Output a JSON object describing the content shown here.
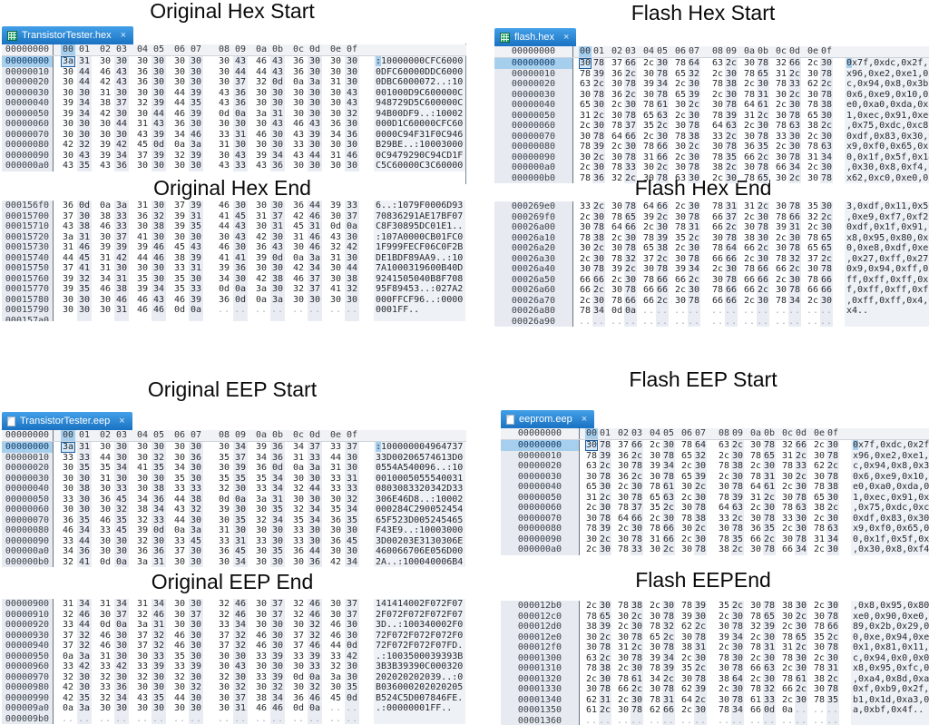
{
  "ui": {
    "close_glyph": "×",
    "columns": "00 01 02 03 04 05 06 07 08 09 0a 0b 0c 0d 0e 0f",
    "cursor_col_index": 0,
    "colors": {
      "tab_blue": "#1e7ac6",
      "selection_blue": "#a6cfee",
      "cursor_border": "#1d5c9c",
      "column_shade": "#e9edf3",
      "gutter_bg": "#e7ebf1",
      "ascii_bg": "#eef1f6",
      "hex_icon_green": "#1f9e63"
    }
  },
  "titles": [
    "Original Hex Start",
    "Flash Hex Start",
    "Original Hex End",
    "Flash Hex End",
    "Original EEP Start",
    "Flash EEP Start",
    "Original EEP End",
    "Flash EEPEnd"
  ],
  "panels": [
    {
      "name": "original-hex-start",
      "kind": "start",
      "tab": {
        "file": "TransistorTester.hex",
        "icon": "spreadsheet-file-icon"
      },
      "header_offset": "00000000",
      "rows": [
        {
          "offset": "00000000",
          "sel": true,
          "bytes": "3a 31 30 30 30 30 30 30 30 43 46 43 36 30 30 30",
          "ascii": ":10000000CFC6000"
        },
        {
          "offset": "00000010",
          "bytes": "30 44 46 43 36 30 30 30 30 44 44 43 36 30 30 30",
          "ascii": "0DFC60000DDC6000"
        },
        {
          "offset": "00000020",
          "bytes": "30 44 42 43 36 30 30 30 30 37 32 0d 0a 3a 31 30",
          "ascii": "0DBC6000072..:10"
        },
        {
          "offset": "00000030",
          "bytes": "30 30 31 30 30 30 44 39 43 36 30 30 30 30 30 43",
          "ascii": "001000D9C600000C"
        },
        {
          "offset": "00000040",
          "bytes": "39 34 38 37 32 39 44 35 43 36 30 30 30 30 30 43",
          "ascii": "948729D5C600000C"
        },
        {
          "offset": "00000050",
          "bytes": "39 34 42 30 30 44 46 39 0d 0a 3a 31 30 30 30 32",
          "ascii": "94B00DF9..:10002"
        },
        {
          "offset": "00000060",
          "bytes": "30 30 30 44 31 43 36 30 30 30 30 43 46 43 36 30",
          "ascii": "000D1C60000CFC60"
        },
        {
          "offset": "00000070",
          "bytes": "30 30 30 30 43 39 34 46 33 31 46 30 43 39 34 36",
          "ascii": "0000C94F31F0C946"
        },
        {
          "offset": "00000080",
          "bytes": "42 32 39 42 45 0d 0a 3a 31 30 30 30 33 30 30 30",
          "ascii": "B29BE..:10003000"
        },
        {
          "offset": "00000090",
          "bytes": "30 43 39 34 37 39 32 39 30 43 39 34 43 44 31 46",
          "ascii": "0C9479290C94CD1F"
        },
        {
          "offset": "000000a0",
          "bytes": "43 35 43 36 30 30 30 30 43 33 43 36 30 30 30 30",
          "ascii": "C5C60000C3C60000"
        }
      ]
    },
    {
      "name": "flash-hex-start",
      "kind": "start",
      "tab": {
        "file": "flash.hex",
        "icon": "spreadsheet-file-icon"
      },
      "header_offset": "00000000",
      "rows": [
        {
          "offset": "00000000",
          "sel": true,
          "bytes": "30 78 37 66 2c 30 78 64 63 2c 30 78 32 66 2c 30",
          "ascii": "0x7f,0xdc,0x2f,0"
        },
        {
          "offset": "00000010",
          "bytes": "78 39 36 2c 30 78 65 32 2c 30 78 65 31 2c 30 78",
          "ascii": "x96,0xe2,0xe1,0x"
        },
        {
          "offset": "00000020",
          "bytes": "63 2c 30 78 39 34 2c 30 78 38 2c 30 78 33 62 2c",
          "ascii": "c,0x94,0x8,0x3b,"
        },
        {
          "offset": "00000030",
          "bytes": "30 78 36 2c 30 78 65 39 2c 30 78 31 30 2c 30 78",
          "ascii": "0x6,0xe9,0x10,0x"
        },
        {
          "offset": "00000040",
          "bytes": "65 30 2c 30 78 61 30 2c 30 78 64 61 2c 30 78 38",
          "ascii": "e0,0xa0,0xda,0x8"
        },
        {
          "offset": "00000050",
          "bytes": "31 2c 30 78 65 63 2c 30 78 39 31 2c 30 78 65 30",
          "ascii": "1,0xec,0x91,0xe0"
        },
        {
          "offset": "00000060",
          "bytes": "2c 30 78 37 35 2c 30 78 64 63 2c 30 78 63 38 2c",
          "ascii": ",0x75,0xdc,0xc8,"
        },
        {
          "offset": "00000070",
          "bytes": "30 78 64 66 2c 30 78 38 33 2c 30 78 33 30 2c 30",
          "ascii": "0xdf,0x83,0x30,0"
        },
        {
          "offset": "00000080",
          "bytes": "78 39 2c 30 78 66 30 2c 30 78 36 35 2c 30 78 63",
          "ascii": "x9,0xf0,0x65,0xc"
        },
        {
          "offset": "00000090",
          "bytes": "30 2c 30 78 31 66 2c 30 78 35 66 2c 30 78 31 34",
          "ascii": "0,0x1f,0x5f,0x14"
        },
        {
          "offset": "000000a0",
          "bytes": "2c 30 78 33 30 2c 30 78 38 2c 30 78 66 34 2c 30",
          "ascii": ",0x30,0x8,0xf4,0"
        },
        {
          "offset": "000000b0",
          "bytes": "78 36 32 2c 30 78 63 30 2c 30 78 65 30 2c 30 78",
          "ascii": "x62,0xc0,0xe0,0x"
        }
      ]
    },
    {
      "name": "original-hex-end",
      "kind": "end",
      "rows": [
        {
          "offset": "000156f0",
          "bytes": "36 0d 0a 3a 31 30 37 39 46 30 30 30 36 44 39 33",
          "ascii": "6..:1079F0006D93"
        },
        {
          "offset": "00015700",
          "bytes": "37 30 38 33 36 32 39 31 41 45 31 37 42 46 30 37",
          "ascii": "70836291AE17BF07"
        },
        {
          "offset": "00015710",
          "bytes": "43 38 46 33 30 38 39 35 44 43 30 31 45 31 0d 0a",
          "ascii": "C8F30895DC01E1.."
        },
        {
          "offset": "00015720",
          "bytes": "3a 31 30 37 41 30 30 30 30 43 42 30 31 46 43 30",
          "ascii": ":107A0000CB01FC0"
        },
        {
          "offset": "00015730",
          "bytes": "31 46 39 39 39 46 45 43 46 30 36 43 30 46 32 42",
          "ascii": "1F999FECF06C0F2B"
        },
        {
          "offset": "00015740",
          "bytes": "44 45 31 42 44 46 38 39 41 41 39 0d 0a 3a 31 30",
          "ascii": "DE1BDF89AA9..:10"
        },
        {
          "offset": "00015750",
          "bytes": "37 41 31 30 30 30 33 31 39 36 30 30 42 34 30 44",
          "ascii": "7A1000319600B40D"
        },
        {
          "offset": "00015760",
          "bytes": "39 32 34 31 35 30 35 30 34 30 42 38 46 37 30 38",
          "ascii": "9241505040B8F708"
        },
        {
          "offset": "00015770",
          "bytes": "39 35 46 38 39 34 35 33 0d 0a 3a 30 32 37 41 32",
          "ascii": "95F89453..:027A2"
        },
        {
          "offset": "00015780",
          "bytes": "30 30 30 46 46 43 46 39 36 0d 0a 3a 30 30 30 30",
          "ascii": "000FFCF96..:0000"
        },
        {
          "offset": "00015790",
          "bytes": "30 30 30 31 46 46 0d 0a .. .. .. .. .. .. .. ..",
          "ascii": "0001FF.."
        },
        {
          "offset": "000157a0",
          "bytes": ".. .. .. .. .. .. .. .. .. .. .. .. .. .. .. ..",
          "ascii": ""
        }
      ]
    },
    {
      "name": "flash-hex-end",
      "kind": "end",
      "rows": [
        {
          "offset": "000269e0",
          "bytes": "33 2c 30 78 64 66 2c 30 78 31 31 2c 30 78 35 30",
          "ascii": "3,0xdf,0x11,0x50"
        },
        {
          "offset": "000269f0",
          "bytes": "2c 30 78 65 39 2c 30 78 66 37 2c 30 78 66 32 2c",
          "ascii": ",0xe9,0xf7,0xf2,"
        },
        {
          "offset": "00026a00",
          "bytes": "30 78 64 66 2c 30 78 31 66 2c 30 78 39 31 2c 30",
          "ascii": "0xdf,0x1f,0x91,0"
        },
        {
          "offset": "00026a10",
          "bytes": "78 38 2c 30 78 39 35 2c 30 78 38 30 2c 30 78 65",
          "ascii": "x8,0x95,0x80,0xe"
        },
        {
          "offset": "00026a20",
          "bytes": "30 2c 30 78 65 38 2c 30 78 64 66 2c 30 78 65 65",
          "ascii": "0,0xe8,0xdf,0xee"
        },
        {
          "offset": "00026a30",
          "bytes": "2c 30 78 32 37 2c 30 78 66 66 2c 30 78 32 37 2c",
          "ascii": ",0x27,0xff,0x27,"
        },
        {
          "offset": "00026a40",
          "bytes": "30 78 39 2c 30 78 39 34 2c 30 78 66 66 2c 30 78",
          "ascii": "0x9,0x94,0xff,0x"
        },
        {
          "offset": "00026a50",
          "bytes": "66 66 2c 30 78 66 66 2c 30 78 66 66 2c 30 78 66",
          "ascii": "ff,0xff,0xff,0xf"
        },
        {
          "offset": "00026a60",
          "bytes": "66 2c 30 78 66 66 2c 30 78 66 66 2c 30 78 66 66",
          "ascii": "f,0xff,0xff,0xff"
        },
        {
          "offset": "00026a70",
          "bytes": "2c 30 78 66 66 2c 30 78 66 66 2c 30 78 34 2c 30",
          "ascii": ",0xff,0xff,0x4,0"
        },
        {
          "offset": "00026a80",
          "bytes": "78 34 0d 0a .. .. .. .. .. .. .. .. .. .. .. ..",
          "ascii": "x4.."
        },
        {
          "offset": "00026a90",
          "bytes": ".. .. .. .. .. .. .. .. .. .. .. .. .. .. .. ..",
          "ascii": ""
        }
      ]
    },
    {
      "name": "original-eep-start",
      "kind": "start",
      "tab": {
        "file": "TransistorTester.eep",
        "icon": "document-file-icon"
      },
      "header_offset": "00000000",
      "rows": [
        {
          "offset": "00000000",
          "sel": true,
          "bytes": "3a 31 30 30 30 30 30 30 30 34 39 36 34 37 33 37",
          "ascii": ":100000004964737"
        },
        {
          "offset": "00000010",
          "bytes": "33 33 44 30 30 32 30 36 35 37 34 36 31 33 44 30",
          "ascii": "33D00206574613D0"
        },
        {
          "offset": "00000020",
          "bytes": "30 35 35 34 41 35 34 30 30 39 36 0d 0a 3a 31 30",
          "ascii": "0554A540096..:10"
        },
        {
          "offset": "00000030",
          "bytes": "30 30 31 30 30 30 35 30 35 35 35 34 30 30 33 31",
          "ascii": "0010005055540031"
        },
        {
          "offset": "00000040",
          "bytes": "30 38 30 33 30 38 33 33 32 30 33 34 32 44 33 33",
          "ascii": "0803083320342D33"
        },
        {
          "offset": "00000050",
          "bytes": "33 30 36 45 34 36 44 38 0d 0a 3a 31 30 30 30 32",
          "ascii": "306E46D8..:10002"
        },
        {
          "offset": "00000060",
          "bytes": "30 30 30 32 38 34 43 32 39 30 30 35 32 34 35 34",
          "ascii": "000284C290052454"
        },
        {
          "offset": "00000070",
          "bytes": "36 35 46 35 32 33 44 30 30 35 32 34 35 34 36 35",
          "ascii": "65F523D005245465"
        },
        {
          "offset": "00000080",
          "bytes": "46 34 33 45 39 0d 0a 3a 31 30 30 30 33 30 30 30",
          "ascii": "F43E9..:10003000"
        },
        {
          "offset": "00000090",
          "bytes": "33 44 30 30 32 30 33 45 33 31 33 30 33 30 36 45",
          "ascii": "3D00203E3130306E"
        },
        {
          "offset": "000000a0",
          "bytes": "34 36 30 30 36 36 37 30 36 45 30 35 36 44 30 30",
          "ascii": "460066706E056D00"
        },
        {
          "offset": "000000b0",
          "bytes": "32 41 0d 0a 3a 31 30 30 30 34 30 30 30 36 42 34",
          "ascii": "2A..:100040006B4"
        }
      ]
    },
    {
      "name": "flash-eep-start",
      "kind": "start",
      "tab": {
        "file": "eeprom.eep",
        "icon": "document-file-icon"
      },
      "header_offset": "00000000",
      "rows": [
        {
          "offset": "00000000",
          "sel": true,
          "bytes": "30 78 37 66 2c 30 78 64 63 2c 30 78 32 66 2c 30",
          "ascii": "0x7f,0xdc,0x2f,0"
        },
        {
          "offset": "00000010",
          "bytes": "78 39 36 2c 30 78 65 32 2c 30 78 65 31 2c 30 78",
          "ascii": "x96,0xe2,0xe1,0x"
        },
        {
          "offset": "00000020",
          "bytes": "63 2c 30 78 39 34 2c 30 78 38 2c 30 78 33 62 2c",
          "ascii": "c,0x94,0x8,0x3b,"
        },
        {
          "offset": "00000030",
          "bytes": "30 78 36 2c 30 78 65 39 2c 30 78 31 30 2c 30 78",
          "ascii": "0x6,0xe9,0x10,0x"
        },
        {
          "offset": "00000040",
          "bytes": "65 30 2c 30 78 61 30 2c 30 78 64 61 2c 30 78 38",
          "ascii": "e0,0xa0,0xda,0x8"
        },
        {
          "offset": "00000050",
          "bytes": "31 2c 30 78 65 63 2c 30 78 39 31 2c 30 78 65 30",
          "ascii": "1,0xec,0x91,0xe0"
        },
        {
          "offset": "00000060",
          "bytes": "2c 30 78 37 35 2c 30 78 64 63 2c 30 78 63 38 2c",
          "ascii": ",0x75,0xdc,0xc8,"
        },
        {
          "offset": "00000070",
          "bytes": "30 78 64 66 2c 30 78 38 33 2c 30 78 33 30 2c 30",
          "ascii": "0xdf,0x83,0x30,0"
        },
        {
          "offset": "00000080",
          "bytes": "78 39 2c 30 78 66 30 2c 30 78 36 35 2c 30 78 63",
          "ascii": "x9,0xf0,0x65,0xc"
        },
        {
          "offset": "00000090",
          "bytes": "30 2c 30 78 31 66 2c 30 78 35 66 2c 30 78 31 34",
          "ascii": "0,0x1f,0x5f,0x14"
        },
        {
          "offset": "000000a0",
          "bytes": "2c 30 78 33 30 2c 30 78 38 2c 30 78 66 34 2c 30",
          "ascii": ",0x30,0x8,0xf4,0"
        }
      ]
    },
    {
      "name": "original-eep-end",
      "kind": "end",
      "rows": [
        {
          "offset": "00000900",
          "bytes": "31 34 31 34 31 34 30 30 32 46 30 37 32 46 30 37",
          "ascii": "141414002F072F07"
        },
        {
          "offset": "00000910",
          "bytes": "32 46 30 37 32 46 30 37 32 46 30 37 32 46 30 37",
          "ascii": "2F072F072F072F07"
        },
        {
          "offset": "00000920",
          "bytes": "33 44 0d 0a 3a 31 30 30 33 34 30 30 30 32 46 30",
          "ascii": "3D..:100340002F0"
        },
        {
          "offset": "00000930",
          "bytes": "37 32 46 30 37 32 46 30 37 32 46 30 37 32 46 30",
          "ascii": "72F072F072F072F0"
        },
        {
          "offset": "00000940",
          "bytes": "37 32 46 30 37 32 46 30 37 32 46 30 37 46 44 0d",
          "ascii": "72F072F072F07FD."
        },
        {
          "offset": "00000950",
          "bytes": "0a 3a 31 30 30 33 35 30 30 30 33 39 33 39 33 42",
          "ascii": ".:1003500039393B"
        },
        {
          "offset": "00000960",
          "bytes": "33 42 33 42 33 39 33 39 30 43 30 30 30 33 32 30",
          "ascii": "3B3B39390C000320"
        },
        {
          "offset": "00000970",
          "bytes": "32 30 32 30 32 30 32 30 32 30 33 39 0d 0a 3a 30",
          "ascii": "202020202039..:0"
        },
        {
          "offset": "00000980",
          "bytes": "42 30 33 36 30 30 30 32 30 32 30 32 30 32 30 35",
          "ascii": "B036000202020205"
        },
        {
          "offset": "00000990",
          "bytes": "42 35 32 34 43 35 44 30 30 37 38 34 36 46 45 0d",
          "ascii": "B524C5D007846FE."
        },
        {
          "offset": "000009a0",
          "bytes": "0a 3a 30 30 30 30 30 30 30 31 46 46 0d 0a .. ..",
          "ascii": ".:00000001FF.."
        },
        {
          "offset": "000009b0",
          "bytes": ".. .. .. .. .. .. .. .. .. .. .. .. .. .. .. ..",
          "ascii": ""
        }
      ]
    },
    {
      "name": "flash-eep-end",
      "kind": "end",
      "rows": [
        {
          "offset": "000012b0",
          "bytes": "2c 30 78 38 2c 30 78 39 35 2c 30 78 38 30 2c 30",
          "ascii": ",0x8,0x95,0x80,0"
        },
        {
          "offset": "000012c0",
          "bytes": "78 65 30 2c 30 78 39 30 2c 30 78 65 30 2c 30 78",
          "ascii": "xe0,0x90,0xe0,0x"
        },
        {
          "offset": "000012d0",
          "bytes": "38 39 2c 30 78 32 62 2c 30 78 32 39 2c 30 78 66",
          "ascii": "89,0x2b,0x29,0xf"
        },
        {
          "offset": "000012e0",
          "bytes": "30 2c 30 78 65 2c 30 78 39 34 2c 30 78 65 35 2c",
          "ascii": "0,0xe,0x94,0xe5,"
        },
        {
          "offset": "000012f0",
          "bytes": "30 78 31 2c 30 78 38 31 2c 30 78 31 31 2c 30 78",
          "ascii": "0x1,0x81,0x11,0x"
        },
        {
          "offset": "00001300",
          "bytes": "63 2c 30 78 39 34 2c 30 78 30 2c 30 78 30 2c 30",
          "ascii": "c,0x94,0x0,0x0,0"
        },
        {
          "offset": "00001310",
          "bytes": "78 38 2c 30 78 39 35 2c 30 78 66 63 2c 30 78 31",
          "ascii": "x8,0x95,0xfc,0x1"
        },
        {
          "offset": "00001320",
          "bytes": "2c 30 78 61 34 2c 30 78 38 64 2c 30 78 61 38 2c",
          "ascii": ",0xa4,0x8d,0xa8,"
        },
        {
          "offset": "00001330",
          "bytes": "30 78 66 2c 30 78 62 39 2c 30 78 32 66 2c 30 78",
          "ascii": "0xf,0xb9,0x2f,0x"
        },
        {
          "offset": "00001340",
          "bytes": "62 31 2c 30 78 31 64 2c 30 78 61 33 2c 30 78 35",
          "ascii": "b1,0x1d,0xa3,0x5"
        },
        {
          "offset": "00001350",
          "bytes": "61 2c 30 78 62 66 2c 30 78 34 66 0d 0a .. .. ..",
          "ascii": "a,0xbf,0x4f.."
        },
        {
          "offset": "00001360",
          "bytes": ".. .. .. .. .. .. .. .. .. .. .. .. .. .. .. ..",
          "ascii": ""
        }
      ]
    }
  ]
}
